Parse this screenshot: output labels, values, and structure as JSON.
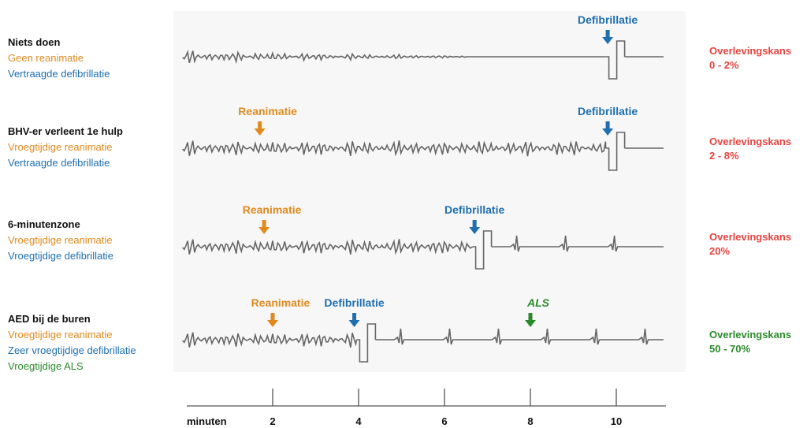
{
  "colors": {
    "cpr": "#e08a1e",
    "defib": "#1f6fb0",
    "als": "#2a8a2a",
    "survival_low": "#e8433f",
    "survival_high": "#2a8a2a",
    "trace": "#666666"
  },
  "chart_data": {
    "type": "diagram",
    "x_axis": {
      "label": "minuten",
      "ticks": [
        2,
        4,
        6,
        8,
        10
      ],
      "range": [
        -0.3,
        11.2
      ]
    },
    "scenarios": [
      {
        "title": "Niets doen",
        "lines": [
          {
            "text": "Geen reanimatie",
            "color": "cpr"
          },
          {
            "text": "Vertraagde defibrillatie",
            "color": "defib"
          }
        ],
        "events": [
          {
            "label": "Defibrillatie",
            "type": "defib",
            "minute": 9.8
          }
        ],
        "shock_minute": 9.9,
        "post_shock": "flat",
        "survival": {
          "label": "Overlevingskans",
          "value": "0 - 2%",
          "color": "survival_low"
        }
      },
      {
        "title": "BHV-er verleent 1e hulp",
        "lines": [
          {
            "text": "Vroegtijdige reanimatie",
            "color": "cpr"
          },
          {
            "text": "Vertraagde defibrillatie",
            "color": "defib"
          }
        ],
        "events": [
          {
            "label": "Reanimatie",
            "type": "cpr",
            "minute": 1.7
          },
          {
            "label": "Defibrillatie",
            "type": "defib",
            "minute": 9.8
          }
        ],
        "shock_minute": 9.9,
        "post_shock": "flat",
        "survival": {
          "label": "Overlevingskans",
          "value": "2 - 8%",
          "color": "survival_low"
        }
      },
      {
        "title": "6-minutenzone",
        "lines": [
          {
            "text": "Vroegtijdige reanimatie",
            "color": "cpr"
          },
          {
            "text": "Vroegtijdige defibrillatie",
            "color": "defib"
          }
        ],
        "events": [
          {
            "label": "Reanimatie",
            "type": "cpr",
            "minute": 1.8
          },
          {
            "label": "Defibrillatie",
            "type": "defib",
            "minute": 6.7
          }
        ],
        "shock_minute": 6.8,
        "post_shock": "rhythm",
        "survival": {
          "label": "Overlevingskans",
          "value": "20%",
          "color": "survival_low"
        }
      },
      {
        "title": "AED bij de buren",
        "lines": [
          {
            "text": "Vroegtijdige reanimatie",
            "color": "cpr"
          },
          {
            "text": "Zeer vroegtijdige defibrillatie",
            "color": "defib"
          },
          {
            "text": "Vroegtijdige ALS",
            "color": "als"
          }
        ],
        "events": [
          {
            "label": "Reanimatie",
            "type": "cpr",
            "minute": 2.0
          },
          {
            "label": "Defibrillatie",
            "type": "defib",
            "minute": 3.9
          },
          {
            "label": "ALS",
            "type": "als",
            "minute": 8.0
          }
        ],
        "shock_minute": 4.1,
        "post_shock": "rhythm",
        "survival": {
          "label": "Overlevingskans",
          "value": "50 - 70%",
          "color": "survival_high"
        }
      }
    ]
  }
}
